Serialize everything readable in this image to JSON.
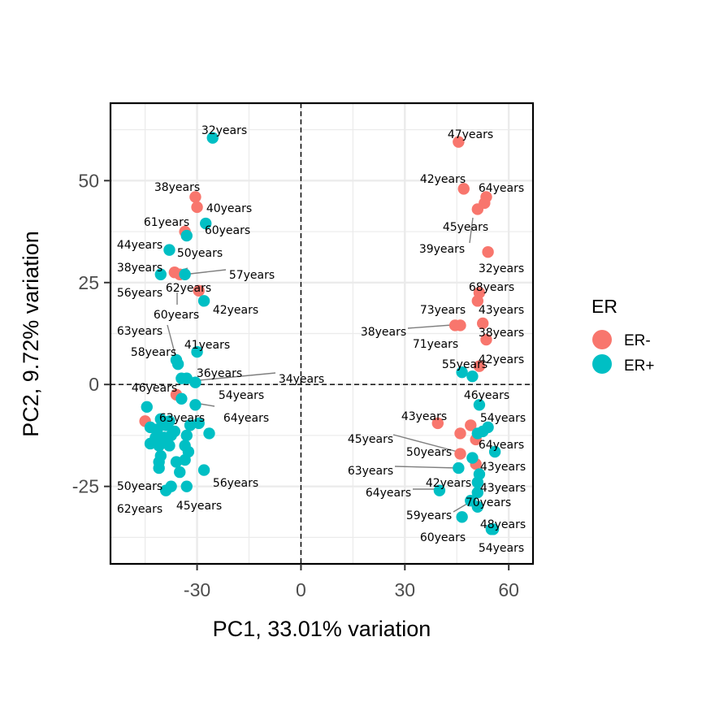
{
  "chart_data": {
    "type": "scatter",
    "title": "",
    "xlabel": "PC1, 33.01% variation",
    "ylabel": "PC2, 9.72% variation",
    "xlim": [
      -55,
      67
    ],
    "ylim": [
      -44,
      69
    ],
    "xticks": [
      -30,
      0,
      30,
      60
    ],
    "yticks": [
      -25,
      0,
      25,
      50
    ],
    "xtick_labels": [
      "-30",
      "0",
      "30",
      "60"
    ],
    "ytick_labels": [
      "-25",
      "0",
      "25",
      "50"
    ],
    "grid": true,
    "reference_lines": {
      "x": 0,
      "y": 0,
      "style": "dashed"
    },
    "legend": {
      "title": "ER",
      "position": "right",
      "entries": [
        {
          "name": "ER-",
          "color": "#F8766D"
        },
        {
          "name": "ER+",
          "color": "#00BFC4"
        }
      ]
    },
    "series": [
      {
        "name": "ER-",
        "color": "#F8766D",
        "points": [
          {
            "x": -30.5,
            "y": 46.0,
            "label": "38years"
          },
          {
            "x": -30.0,
            "y": 43.5,
            "label": "40years"
          },
          {
            "x": -33.5,
            "y": 37.5,
            "label": "61years"
          },
          {
            "x": -36.5,
            "y": 27.5,
            "label": "38years"
          },
          {
            "x": -35.0,
            "y": 27.0,
            "label": "62years"
          },
          {
            "x": -29.5,
            "y": 23.0,
            "label": "60years"
          },
          {
            "x": -36.0,
            "y": -2.5,
            "label": "46years"
          },
          {
            "x": -45.0,
            "y": -9.0,
            "label": ""
          },
          {
            "x": 45.5,
            "y": 59.5,
            "label": "47years"
          },
          {
            "x": 47.0,
            "y": 48.0,
            "label": "42years"
          },
          {
            "x": 53.5,
            "y": 46.0,
            "label": "64years"
          },
          {
            "x": 51.0,
            "y": 43.0,
            "label": "45years"
          },
          {
            "x": 53.0,
            "y": 44.5,
            "label": "39years"
          },
          {
            "x": 54.0,
            "y": 32.5,
            "label": "32years"
          },
          {
            "x": 51.5,
            "y": 22.5,
            "label": "68years"
          },
          {
            "x": 51.0,
            "y": 20.5,
            "label": "73years"
          },
          {
            "x": 52.5,
            "y": 15.0,
            "label": "43years"
          },
          {
            "x": 44.5,
            "y": 14.5,
            "label": "38years"
          },
          {
            "x": 46.0,
            "y": 14.5,
            "label": "71years"
          },
          {
            "x": 53.5,
            "y": 11.0,
            "label": "38years"
          },
          {
            "x": 51.5,
            "y": 4.5,
            "label": "42years"
          },
          {
            "x": 39.5,
            "y": -9.5,
            "label": "43years"
          },
          {
            "x": 49.0,
            "y": -10.0,
            "label": ""
          },
          {
            "x": 46.0,
            "y": -12.0,
            "label": ""
          },
          {
            "x": 50.5,
            "y": -13.5,
            "label": ""
          },
          {
            "x": 46.0,
            "y": -17.0,
            "label": "50years"
          },
          {
            "x": 50.5,
            "y": -19.5,
            "label": "45years"
          }
        ]
      },
      {
        "name": "ER+",
        "color": "#00BFC4",
        "points": [
          {
            "x": -25.5,
            "y": 60.5,
            "label": "32years"
          },
          {
            "x": -27.5,
            "y": 39.5,
            "label": "60years"
          },
          {
            "x": -38.0,
            "y": 33.0,
            "label": "44years"
          },
          {
            "x": -33.0,
            "y": 36.5,
            "label": "50years"
          },
          {
            "x": -40.5,
            "y": 27.0,
            "label": "56years"
          },
          {
            "x": -33.5,
            "y": 27.0,
            "label": "57years"
          },
          {
            "x": -28.0,
            "y": 20.5,
            "label": "42years"
          },
          {
            "x": -30.0,
            "y": 8.0,
            "label": "41years"
          },
          {
            "x": -36.0,
            "y": 6.0,
            "label": "58years"
          },
          {
            "x": -35.5,
            "y": 5.0,
            "label": "63years"
          },
          {
            "x": -33.0,
            "y": 1.5,
            "label": "36years"
          },
          {
            "x": -30.5,
            "y": 0.5,
            "label": "54years"
          },
          {
            "x": -34.5,
            "y": 1.5,
            "label": "34years"
          },
          {
            "x": -34.5,
            "y": -3.5,
            "label": "63years"
          },
          {
            "x": -30.5,
            "y": -5.0,
            "label": "64years"
          },
          {
            "x": -44.5,
            "y": -5.5,
            "label": ""
          },
          {
            "x": -40.5,
            "y": -8.5,
            "label": ""
          },
          {
            "x": -38.0,
            "y": -9.0,
            "label": ""
          },
          {
            "x": -43.5,
            "y": -10.5,
            "label": ""
          },
          {
            "x": -41.5,
            "y": -11.0,
            "label": ""
          },
          {
            "x": -39.0,
            "y": -10.0,
            "label": ""
          },
          {
            "x": -36.5,
            "y": -11.5,
            "label": ""
          },
          {
            "x": -32.0,
            "y": -10.0,
            "label": ""
          },
          {
            "x": -29.5,
            "y": -9.5,
            "label": ""
          },
          {
            "x": -26.5,
            "y": -12.0,
            "label": ""
          },
          {
            "x": -42.0,
            "y": -13.0,
            "label": ""
          },
          {
            "x": -39.5,
            "y": -13.0,
            "label": ""
          },
          {
            "x": -37.5,
            "y": -12.5,
            "label": ""
          },
          {
            "x": -33.0,
            "y": -12.5,
            "label": ""
          },
          {
            "x": -43.5,
            "y": -14.5,
            "label": ""
          },
          {
            "x": -41.0,
            "y": -15.0,
            "label": ""
          },
          {
            "x": -38.0,
            "y": -15.0,
            "label": ""
          },
          {
            "x": -33.5,
            "y": -15.0,
            "label": ""
          },
          {
            "x": -32.5,
            "y": -16.5,
            "label": ""
          },
          {
            "x": -40.5,
            "y": -17.5,
            "label": ""
          },
          {
            "x": -41.0,
            "y": -19.0,
            "label": ""
          },
          {
            "x": -36.0,
            "y": -19.0,
            "label": ""
          },
          {
            "x": -33.5,
            "y": -18.5,
            "label": ""
          },
          {
            "x": -41.0,
            "y": -20.5,
            "label": ""
          },
          {
            "x": -35.0,
            "y": -21.5,
            "label": ""
          },
          {
            "x": -28.0,
            "y": -21.0,
            "label": "56years"
          },
          {
            "x": -37.5,
            "y": -25.0,
            "label": "50years"
          },
          {
            "x": -39.0,
            "y": -26.0,
            "label": "62years"
          },
          {
            "x": -33.0,
            "y": -25.0,
            "label": "45years"
          },
          {
            "x": 46.5,
            "y": 3.0,
            "label": "55years"
          },
          {
            "x": 49.5,
            "y": 2.0,
            "label": ""
          },
          {
            "x": 51.5,
            "y": -5.0,
            "label": "46years"
          },
          {
            "x": 51.0,
            "y": -12.0,
            "label": ""
          },
          {
            "x": 54.0,
            "y": -10.5,
            "label": "54years"
          },
          {
            "x": 52.5,
            "y": -11.5,
            "label": ""
          },
          {
            "x": 56.0,
            "y": -16.5,
            "label": "64years"
          },
          {
            "x": 49.5,
            "y": -18.0,
            "label": ""
          },
          {
            "x": 45.5,
            "y": -20.5,
            "label": "63years"
          },
          {
            "x": 51.5,
            "y": -22.0,
            "label": "43years"
          },
          {
            "x": 51.0,
            "y": -24.0,
            "label": "42years"
          },
          {
            "x": 40.0,
            "y": -26.0,
            "label": "64years"
          },
          {
            "x": 51.0,
            "y": -26.5,
            "label": "43years"
          },
          {
            "x": 49.0,
            "y": -28.5,
            "label": "70years"
          },
          {
            "x": 51.0,
            "y": -30.0,
            "label": "59years"
          },
          {
            "x": 46.5,
            "y": -32.5,
            "label": "60years"
          },
          {
            "x": 55.0,
            "y": -35.5,
            "label": "48years"
          },
          {
            "x": 55.5,
            "y": -35.5,
            "label": "54years"
          }
        ]
      }
    ]
  }
}
